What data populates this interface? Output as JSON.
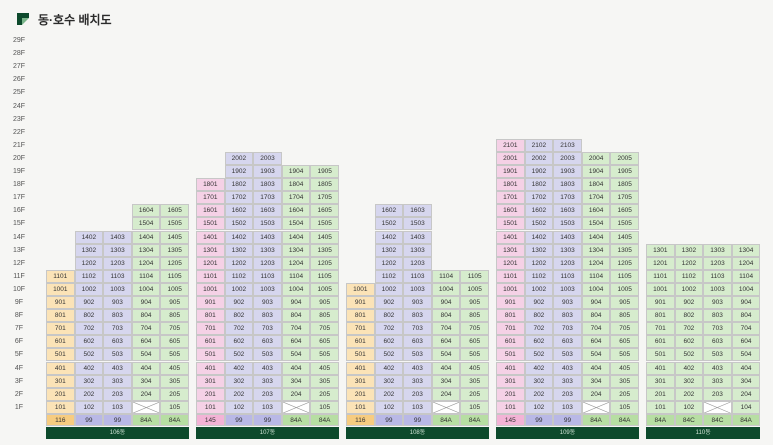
{
  "header": {
    "title": "동·호수 배치도",
    "logo_icon": "flag-icon"
  },
  "floors": [
    "29F",
    "28F",
    "27F",
    "26F",
    "25F",
    "24F",
    "23F",
    "22F",
    "21F",
    "20F",
    "19F",
    "18F",
    "17F",
    "16F",
    "15F",
    "14F",
    "13F",
    "12F",
    "11F",
    "10F",
    "9F",
    "8F",
    "7F",
    "6F",
    "5F",
    "4F",
    "3F",
    "2F",
    "1F"
  ],
  "colors": {
    "purple": "#d6d6ee",
    "green": "#d6eccd",
    "yellow": "#fbe3b7",
    "pink": "#f5d1e6",
    "type_purple": "#b9b8e6",
    "type_green": "#b7dea3",
    "type_yellow": "#f7cc80",
    "type_pink": "#f3b3d6",
    "bar": "#0d4a2c"
  },
  "buildings": [
    {
      "name": "106동",
      "lines": [
        {
          "num": 1,
          "max": 11,
          "color": "yellow",
          "type": "116",
          "empty": []
        },
        {
          "num": 2,
          "max": 14,
          "color": "purple",
          "type": "99",
          "empty": []
        },
        {
          "num": 3,
          "max": 14,
          "color": "purple",
          "type": "99",
          "empty": []
        },
        {
          "num": 4,
          "max": 16,
          "color": "green",
          "type": "84A",
          "empty": [
            1
          ]
        },
        {
          "num": 5,
          "max": 16,
          "color": "green",
          "type": "84A",
          "empty": []
        }
      ]
    },
    {
      "name": "107동",
      "lines": [
        {
          "num": 1,
          "max": 18,
          "color": "pink",
          "type": "145",
          "empty": []
        },
        {
          "num": 2,
          "max": 20,
          "color": "purple",
          "type": "99",
          "empty": []
        },
        {
          "num": 3,
          "max": 20,
          "color": "purple",
          "type": "99",
          "empty": []
        },
        {
          "num": 4,
          "max": 19,
          "color": "green",
          "type": "84A",
          "empty": [
            1
          ]
        },
        {
          "num": 5,
          "max": 19,
          "color": "green",
          "type": "84A",
          "empty": []
        }
      ]
    },
    {
      "name": "108동",
      "lines": [
        {
          "num": 1,
          "max": 10,
          "color": "yellow",
          "type": "116",
          "empty": []
        },
        {
          "num": 2,
          "max": 16,
          "color": "purple",
          "type": "99",
          "empty": []
        },
        {
          "num": 3,
          "max": 16,
          "color": "purple",
          "type": "99",
          "empty": []
        },
        {
          "num": 4,
          "max": 11,
          "color": "green",
          "type": "84A",
          "empty": [
            1
          ]
        },
        {
          "num": 5,
          "max": 11,
          "color": "green",
          "type": "84A",
          "empty": []
        }
      ]
    },
    {
      "name": "109동",
      "lines": [
        {
          "num": 1,
          "max": 21,
          "color": "pink",
          "type": "145",
          "empty": []
        },
        {
          "num": 2,
          "max": 21,
          "color": "purple",
          "type": "99",
          "empty": []
        },
        {
          "num": 3,
          "max": 21,
          "color": "purple",
          "type": "99",
          "empty": []
        },
        {
          "num": 4,
          "max": 20,
          "color": "green",
          "type": "84A",
          "empty": [
            1
          ]
        },
        {
          "num": 5,
          "max": 20,
          "color": "green",
          "type": "84A",
          "empty": []
        }
      ]
    },
    {
      "name": "110동",
      "lines": [
        {
          "num": 1,
          "max": 13,
          "color": "green",
          "type": "84A",
          "empty": []
        },
        {
          "num": 2,
          "max": 13,
          "color": "green",
          "type": "84C",
          "empty": []
        },
        {
          "num": 3,
          "max": 13,
          "color": "green",
          "type": "84C",
          "empty": [
            1
          ]
        },
        {
          "num": 4,
          "max": 13,
          "color": "green",
          "type": "84A",
          "empty": []
        }
      ]
    }
  ]
}
